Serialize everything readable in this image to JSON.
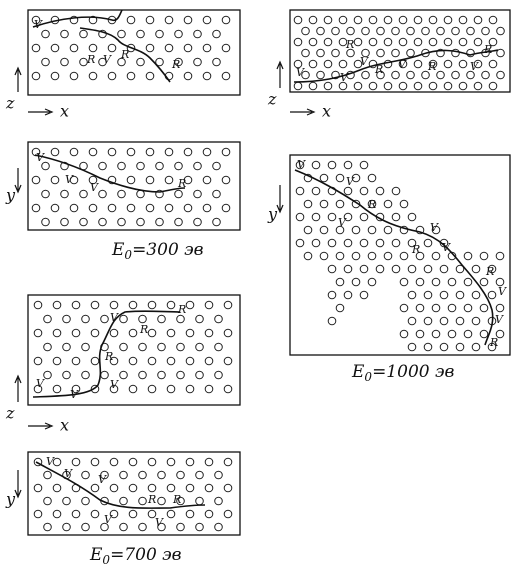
{
  "panels": [
    {
      "axes": {
        "vertical": "z",
        "horizontal": "x"
      },
      "labels": [
        "V",
        "R",
        "V",
        "R",
        "R"
      ]
    },
    {
      "axes": {
        "vertical": "y"
      },
      "labels": [
        "V",
        "V",
        "V",
        "R"
      ]
    },
    {
      "axes": {
        "vertical": "z",
        "horizontal": "x"
      },
      "labels": [
        "V",
        "R",
        "R",
        "R",
        "V",
        "V",
        "V"
      ]
    },
    {
      "axes": {
        "vertical": "y"
      },
      "labels": [
        "V",
        "V",
        "V",
        "R",
        "R",
        "V",
        "V"
      ]
    },
    {
      "axes": {
        "vertical": "z",
        "horizontal": "x"
      },
      "labels": [
        "V",
        "V",
        "R",
        "V",
        "R",
        "V",
        "R",
        "R",
        "V"
      ]
    },
    {
      "axes": {
        "vertical": "y"
      },
      "labels": [
        "V",
        "V",
        "R",
        "V",
        "V",
        "R",
        "V",
        "R",
        "V",
        "V",
        "R"
      ]
    }
  ],
  "captions": [
    {
      "symbol": "E",
      "subscript": "0",
      "text": "=300 эв"
    },
    {
      "symbol": "E",
      "subscript": "0",
      "text": "=700 эв"
    },
    {
      "symbol": "E",
      "subscript": "0",
      "text": "=1000 эв"
    }
  ]
}
